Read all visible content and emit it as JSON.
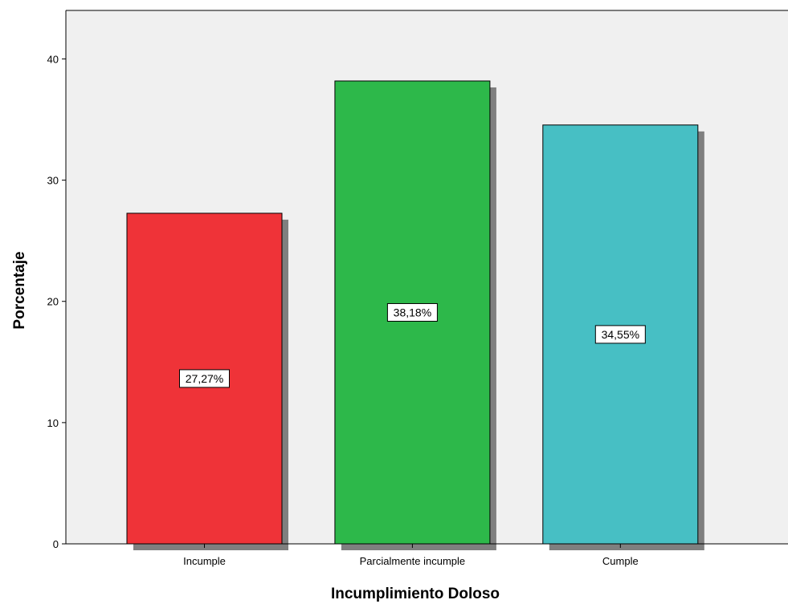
{
  "chart_data": {
    "type": "bar",
    "categories": [
      "Incumple",
      "Parcialmente incumple",
      "Cumple"
    ],
    "values": [
      27.27,
      38.18,
      34.55
    ],
    "data_labels": [
      "27,27%",
      "38,18%",
      "34,55%"
    ],
    "colors": [
      "#ef3338",
      "#2db84a",
      "#47bfc4"
    ],
    "xlabel": "Incumplimiento Doloso",
    "ylabel": "Porcentaje",
    "ylim": [
      0,
      44
    ],
    "yticks": [
      0,
      10,
      20,
      30,
      40
    ],
    "ytick_labels": [
      "0",
      "10",
      "20",
      "30",
      "40"
    ],
    "grid": false,
    "background": "#f0f0f0",
    "shadow_color": "#7f7f7f"
  }
}
